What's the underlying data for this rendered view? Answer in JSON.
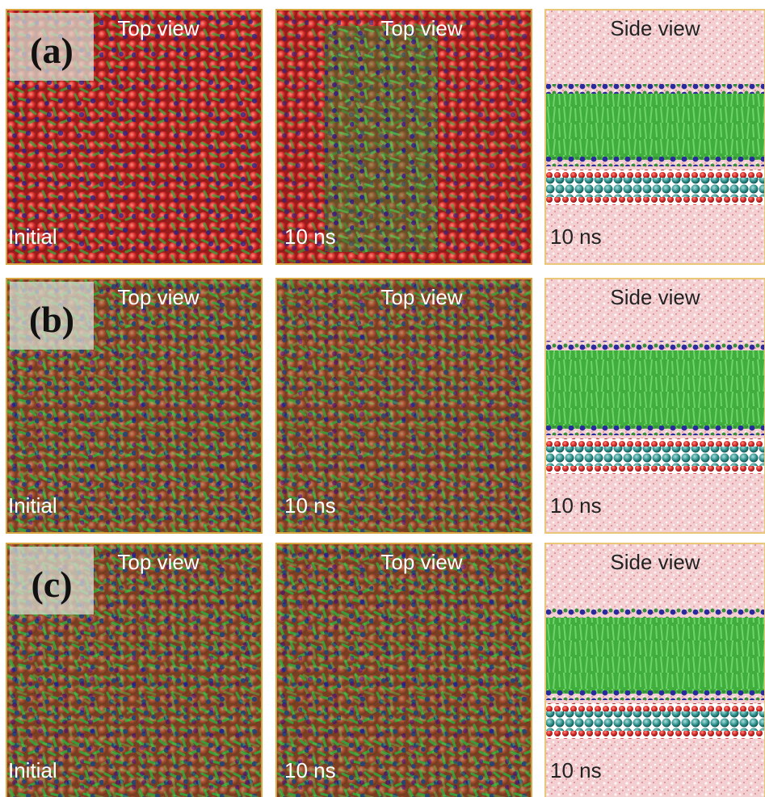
{
  "rows": [
    {
      "label": "(a)",
      "panels": [
        {
          "title": "Top view",
          "caption": "Initial"
        },
        {
          "title": "Top view",
          "caption": "10 ns"
        },
        {
          "title": "Side view",
          "caption": "10 ns"
        }
      ]
    },
    {
      "label": "(b)",
      "panels": [
        {
          "title": "Top view",
          "caption": "Initial"
        },
        {
          "title": "Top view",
          "caption": "10 ns"
        },
        {
          "title": "Side view",
          "caption": "10 ns"
        }
      ]
    },
    {
      "label": "(c)",
      "panels": [
        {
          "title": "Top view",
          "caption": "Initial"
        },
        {
          "title": "Top view",
          "caption": "10 ns"
        },
        {
          "title": "Side view",
          "caption": "10 ns"
        }
      ]
    }
  ]
}
